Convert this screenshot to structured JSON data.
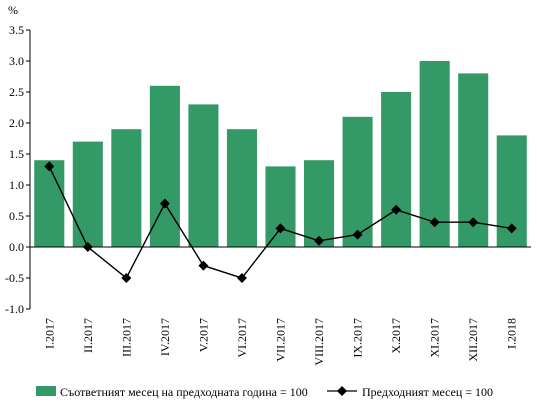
{
  "chart_data": {
    "type": "bar",
    "unit_label": "%",
    "categories": [
      "I.2017",
      "II.2017",
      "III.2017",
      "IV.2017",
      "V.2017",
      "VI.2017",
      "VII.2017",
      "VIII.2017",
      "IX.2017",
      "X.2017",
      "XI.2017",
      "XII.2017",
      "I.2018"
    ],
    "series": [
      {
        "name": "Съответният месец на предходната година = 100",
        "type": "bar",
        "color": "#339966",
        "values": [
          1.4,
          1.7,
          1.9,
          2.6,
          2.3,
          1.9,
          1.3,
          1.4,
          2.1,
          2.5,
          3.0,
          2.8,
          1.8
        ]
      },
      {
        "name": "Предходният месец = 100",
        "type": "line",
        "marker": "diamond",
        "color": "#000000",
        "values": [
          1.3,
          0.0,
          -0.5,
          0.7,
          -0.3,
          -0.5,
          0.3,
          0.1,
          0.2,
          0.6,
          0.4,
          0.4,
          0.3
        ]
      }
    ],
    "ylim": [
      -1.0,
      3.5
    ],
    "yticks": [
      "3.5",
      "3.0",
      "2.5",
      "2.0",
      "1.5",
      "1.0",
      "0.5",
      "0.0",
      "-0.5",
      "-1.0"
    ],
    "ytick_values": [
      3.5,
      3.0,
      2.5,
      2.0,
      1.5,
      1.0,
      0.5,
      0.0,
      -0.5,
      -1.0
    ],
    "grid": false,
    "legend": "bottom"
  }
}
